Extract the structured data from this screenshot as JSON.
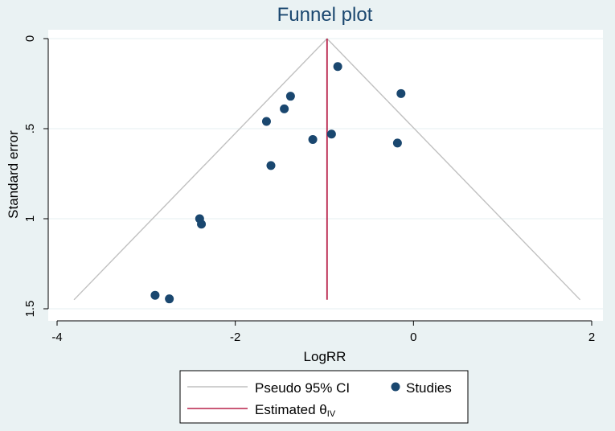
{
  "chart_data": {
    "type": "scatter",
    "title": "Funnel plot",
    "xlabel": "LogRR",
    "ylabel": "Standard error",
    "xlim": [
      -4,
      2
    ],
    "ylim": [
      0,
      1.5
    ],
    "y_reversed": true,
    "grid": true,
    "legend_placement": "bottom",
    "x_ticks": [
      "-4",
      "-2",
      "0",
      "2"
    ],
    "y_ticks": [
      "0",
      ".5",
      "1",
      "1.5"
    ],
    "series": [
      {
        "name": "Studies",
        "points": [
          {
            "x": -0.85,
            "y": 0.155
          },
          {
            "x": -0.14,
            "y": 0.305
          },
          {
            "x": -1.38,
            "y": 0.32
          },
          {
            "x": -1.45,
            "y": 0.39
          },
          {
            "x": -1.65,
            "y": 0.46
          },
          {
            "x": -0.92,
            "y": 0.53
          },
          {
            "x": -1.13,
            "y": 0.56
          },
          {
            "x": -0.18,
            "y": 0.58
          },
          {
            "x": -1.6,
            "y": 0.705
          },
          {
            "x": -2.4,
            "y": 1.0
          },
          {
            "x": -2.38,
            "y": 1.03
          },
          {
            "x": -2.9,
            "y": 1.425
          },
          {
            "x": -2.74,
            "y": 1.445
          }
        ]
      }
    ],
    "estimate": {
      "name": "Estimated θIV",
      "x": -0.97,
      "y_range": [
        0,
        1.45
      ]
    },
    "pseudo_ci": {
      "name": "Pseudo 95% CI",
      "apex": [
        -0.97,
        0
      ],
      "base_y": 1.45,
      "base_x": [
        -3.81,
        1.87
      ]
    },
    "legend": [
      {
        "label": "Pseudo 95% CI",
        "kind": "line",
        "color": "#c0c0c0"
      },
      {
        "label": "Studies",
        "kind": "marker",
        "color": "#1a476f"
      },
      {
        "label": "Estimated θ",
        "subscript": "IV",
        "kind": "line",
        "color": "#b8224a"
      }
    ],
    "colors": {
      "background": "#eaf2f3",
      "plot_area": "#ffffff",
      "marker": "#1a476f",
      "estimate_line": "#b8224a",
      "ci_line": "#c0c0c0",
      "title": "#1a476f"
    }
  }
}
